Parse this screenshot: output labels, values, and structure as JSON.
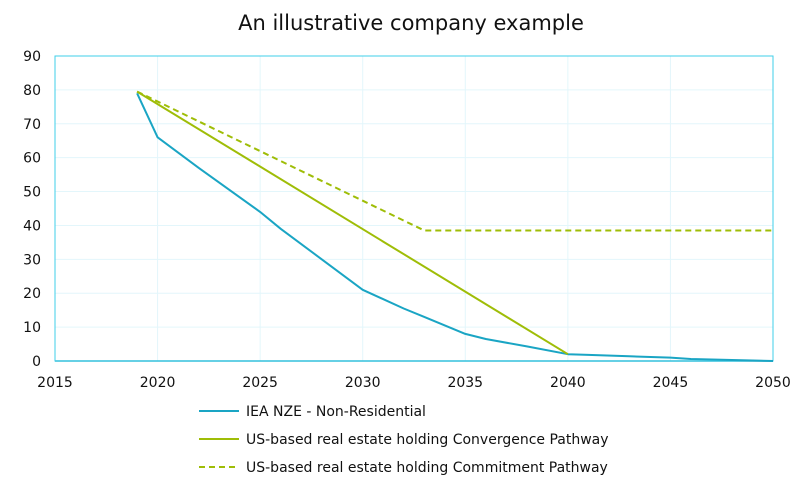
{
  "chart_data": {
    "type": "line",
    "title": "An illustrative company example",
    "xlabel": "",
    "ylabel": "",
    "xlim": [
      2015,
      2050
    ],
    "ylim": [
      0,
      90
    ],
    "x_ticks": [
      2015,
      2020,
      2025,
      2030,
      2035,
      2040,
      2045,
      2050
    ],
    "y_ticks": [
      0,
      10,
      20,
      30,
      40,
      50,
      60,
      70,
      80,
      90
    ],
    "grid": true,
    "legend_position": "bottom",
    "series": [
      {
        "name": "IEA NZE - Non-Residential",
        "color": "#1aa5c4",
        "dash": "solid",
        "points": [
          [
            2019,
            79
          ],
          [
            2020,
            66
          ],
          [
            2022,
            57
          ],
          [
            2025,
            44
          ],
          [
            2026,
            39
          ],
          [
            2028,
            30
          ],
          [
            2030,
            21
          ],
          [
            2032,
            15.5
          ],
          [
            2033,
            13
          ],
          [
            2035,
            8
          ],
          [
            2036,
            6.5
          ],
          [
            2038,
            4.3
          ],
          [
            2040,
            2
          ],
          [
            2041,
            1.8
          ],
          [
            2043,
            1.4
          ],
          [
            2045,
            1.0
          ],
          [
            2046,
            0.6
          ],
          [
            2048,
            0.3
          ],
          [
            2050,
            0.0
          ]
        ]
      },
      {
        "name": "US-based real estate holding Convergence Pathway",
        "color": "#9fbd07",
        "dash": "solid",
        "points": [
          [
            2019,
            79.5
          ],
          [
            2040,
            2
          ]
        ]
      },
      {
        "name": "US-based real estate holding Commitment Pathway",
        "color": "#9fbd07",
        "dash": "dashed",
        "points": [
          [
            2019,
            79.5
          ],
          [
            2033,
            38.5
          ],
          [
            2050,
            38.5
          ]
        ]
      }
    ]
  }
}
